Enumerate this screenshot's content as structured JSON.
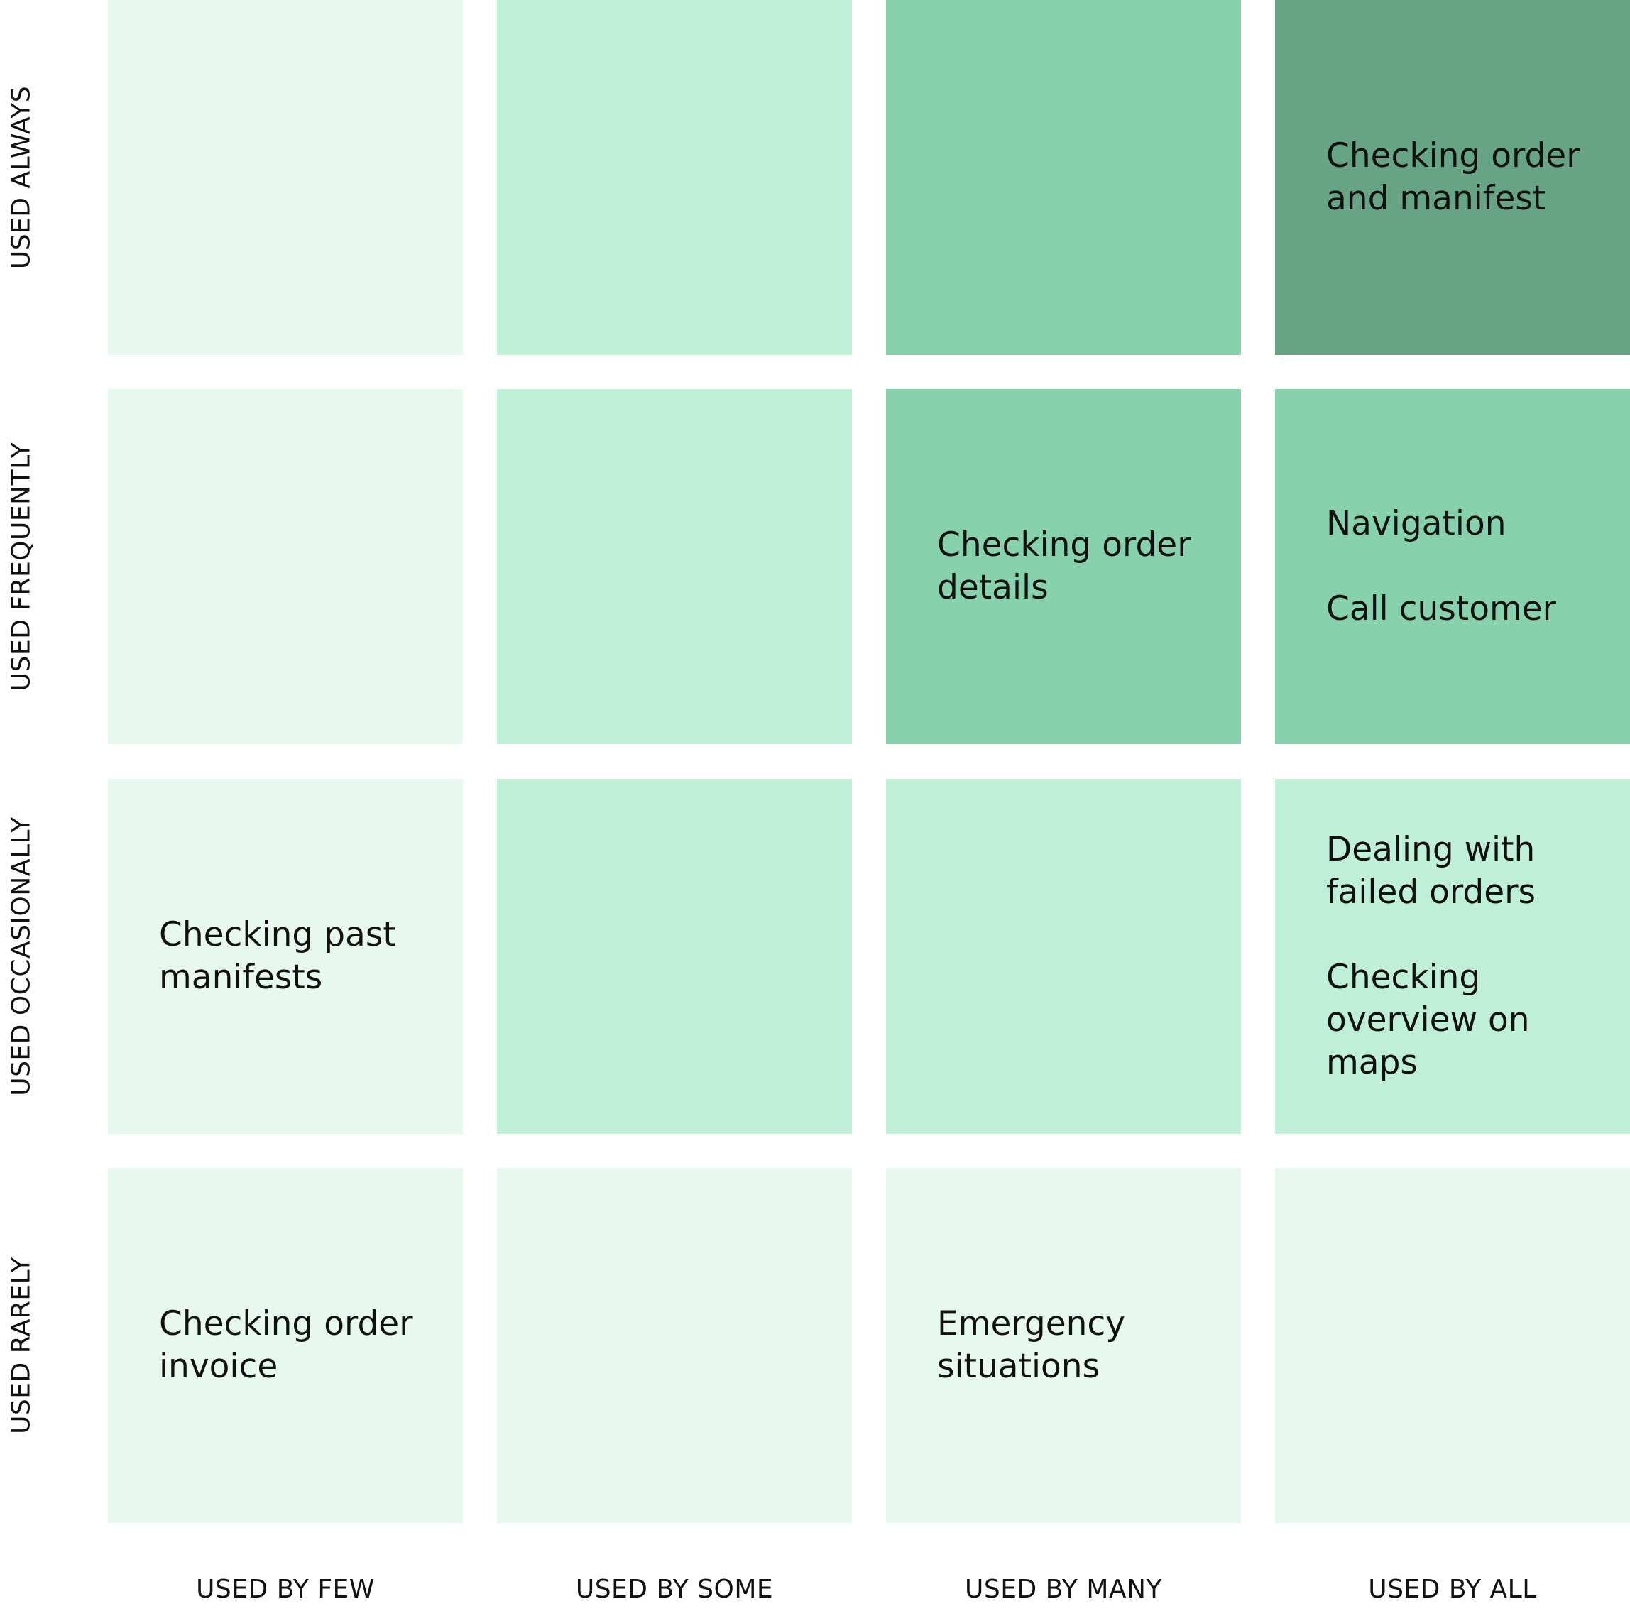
{
  "rows": [
    {
      "label": "USED ALWAYS"
    },
    {
      "label": "USED FREQUENTLY"
    },
    {
      "label": "USED OCCASIONALLY"
    },
    {
      "label": "USED RARELY"
    }
  ],
  "columns": [
    {
      "label": "USED BY FEW"
    },
    {
      "label": "USED BY SOME"
    },
    {
      "label": "USED BY MANY"
    },
    {
      "label": "USED BY ALL"
    }
  ],
  "colors": {
    "level_1": "#e7f8ef",
    "level_2": "#bfefd7",
    "level_3": "#87d2ac",
    "level_4": "#67a486"
  },
  "cells": [
    [
      {
        "level": 1,
        "items": []
      },
      {
        "level": 2,
        "items": []
      },
      {
        "level": 3,
        "items": []
      },
      {
        "level": 4,
        "items": [
          "Checking order\nand manifest"
        ]
      }
    ],
    [
      {
        "level": 1,
        "items": []
      },
      {
        "level": 2,
        "items": []
      },
      {
        "level": 3,
        "items": [
          "Checking order\ndetails"
        ]
      },
      {
        "level": 3,
        "items": [
          "Navigation",
          "Call customer"
        ]
      }
    ],
    [
      {
        "level": 1,
        "items": [
          "Checking past\nmanifests"
        ]
      },
      {
        "level": 2,
        "items": []
      },
      {
        "level": 2,
        "items": []
      },
      {
        "level": 2,
        "items": [
          "Dealing with\nfailed orders",
          "Checking\noverview on\nmaps"
        ]
      }
    ],
    [
      {
        "level": 1,
        "items": [
          "Checking order\ninvoice"
        ]
      },
      {
        "level": 1,
        "items": []
      },
      {
        "level": 1,
        "items": [
          "Emergency\nsituations"
        ]
      },
      {
        "level": 1,
        "items": []
      }
    ]
  ]
}
